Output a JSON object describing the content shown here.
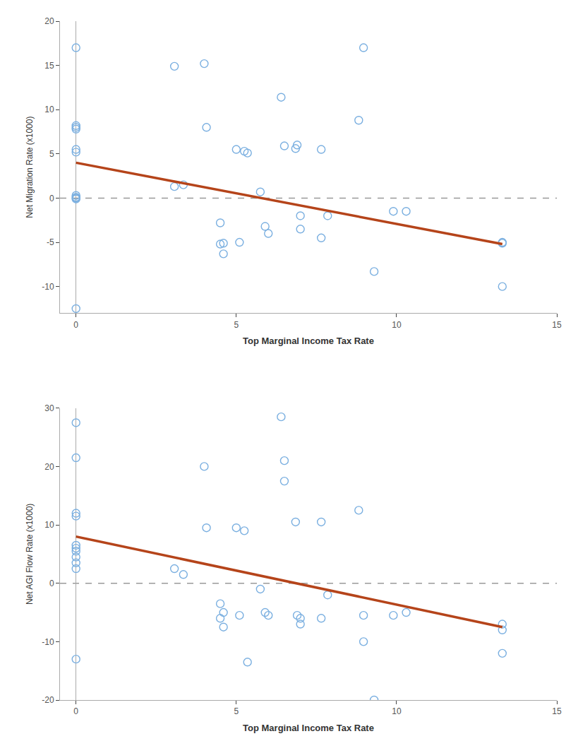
{
  "chart_data": [
    {
      "type": "scatter",
      "xlabel": "Top Marginal Income Tax Rate",
      "ylabel": "Net Migration Rate (x1000)",
      "xlim": [
        -0.5,
        15
      ],
      "ylim": [
        -13,
        20
      ],
      "xticks": [
        0,
        5,
        10,
        15
      ],
      "yticks": [
        -10,
        -5,
        0,
        5,
        10,
        15,
        20
      ],
      "grid": false,
      "series": [
        {
          "type": "scatter",
          "marker": "open_circle",
          "color": "#7aafe0",
          "x": [
            0,
            0,
            0,
            0,
            0,
            0,
            0,
            0,
            0,
            0,
            0,
            3.07,
            3.35,
            3.07,
            4.0,
            4.07,
            4.5,
            4.6,
            4.5,
            4.6,
            5.0,
            5.25,
            5.35,
            5.1,
            5.75,
            5.9,
            6.0,
            6.4,
            6.5,
            6.85,
            6.9,
            7.0,
            7.0,
            7.65,
            7.65,
            7.85,
            8.82,
            8.97,
            9.3,
            9.9,
            10.3,
            13.3,
            13.3,
            13.3
          ],
          "values": [
            17.0,
            8.2,
            8.0,
            7.8,
            5.5,
            5.2,
            0.3,
            0.1,
            -0.1,
            0.0,
            -12.5,
            1.3,
            1.5,
            14.9,
            15.2,
            8.0,
            -2.8,
            -5.1,
            -5.2,
            -6.3,
            5.5,
            5.3,
            5.1,
            -5.0,
            0.7,
            -3.2,
            -4.0,
            11.4,
            5.9,
            5.6,
            6.0,
            -2.0,
            -3.5,
            -4.5,
            5.5,
            -2.0,
            8.8,
            17.0,
            -8.3,
            -1.5,
            -1.5,
            -5.0,
            -5.1,
            -10.0
          ]
        },
        {
          "type": "hline",
          "color": "#999999",
          "line_style": "dashed",
          "values": [
            0
          ]
        },
        {
          "type": "line",
          "color": "#b5441a",
          "line_style": "solid",
          "x": [
            0,
            13.3
          ],
          "values": [
            4.0,
            -5.2
          ]
        }
      ]
    },
    {
      "type": "scatter",
      "xlabel": "Top Marginal Income Tax Rate",
      "ylabel": "Net AGI Flow Rate (x1000)",
      "xlim": [
        -0.5,
        15
      ],
      "ylim": [
        -20,
        30
      ],
      "xticks": [
        0,
        5,
        10,
        15
      ],
      "yticks": [
        -20,
        -10,
        0,
        10,
        20,
        30
      ],
      "grid": false,
      "series": [
        {
          "type": "scatter",
          "marker": "open_circle",
          "color": "#7aafe0",
          "x": [
            0,
            0,
            0,
            0,
            0,
            0,
            0,
            0,
            0,
            0,
            0,
            3.07,
            3.35,
            4.0,
            4.07,
            4.5,
            4.6,
            4.5,
            4.6,
            5.0,
            5.1,
            5.25,
            5.35,
            5.75,
            5.9,
            6.0,
            6.4,
            6.5,
            6.5,
            6.85,
            6.9,
            7.0,
            7.0,
            7.65,
            7.65,
            7.85,
            8.82,
            8.97,
            8.97,
            9.3,
            9.9,
            10.3,
            13.3,
            13.3,
            13.3
          ],
          "values": [
            27.5,
            21.5,
            12.0,
            11.5,
            6.5,
            6.0,
            5.5,
            4.5,
            3.5,
            2.5,
            -13.0,
            2.5,
            1.5,
            20.0,
            9.5,
            -3.5,
            -5.0,
            -6.0,
            -7.5,
            9.5,
            -5.5,
            9.0,
            -13.5,
            -1.0,
            -5.0,
            -5.5,
            28.5,
            17.5,
            21.0,
            10.5,
            -5.5,
            -6.0,
            -7.0,
            -6.0,
            10.5,
            -2.0,
            12.5,
            -5.5,
            -10.0,
            -20.0,
            -5.5,
            -5.0,
            -8.0,
            -12.0,
            -7.0
          ]
        },
        {
          "type": "hline",
          "color": "#999999",
          "line_style": "dashed",
          "values": [
            0
          ]
        },
        {
          "type": "line",
          "color": "#b5441a",
          "line_style": "solid",
          "x": [
            0,
            13.3
          ],
          "values": [
            8.0,
            -7.5
          ]
        }
      ]
    }
  ]
}
